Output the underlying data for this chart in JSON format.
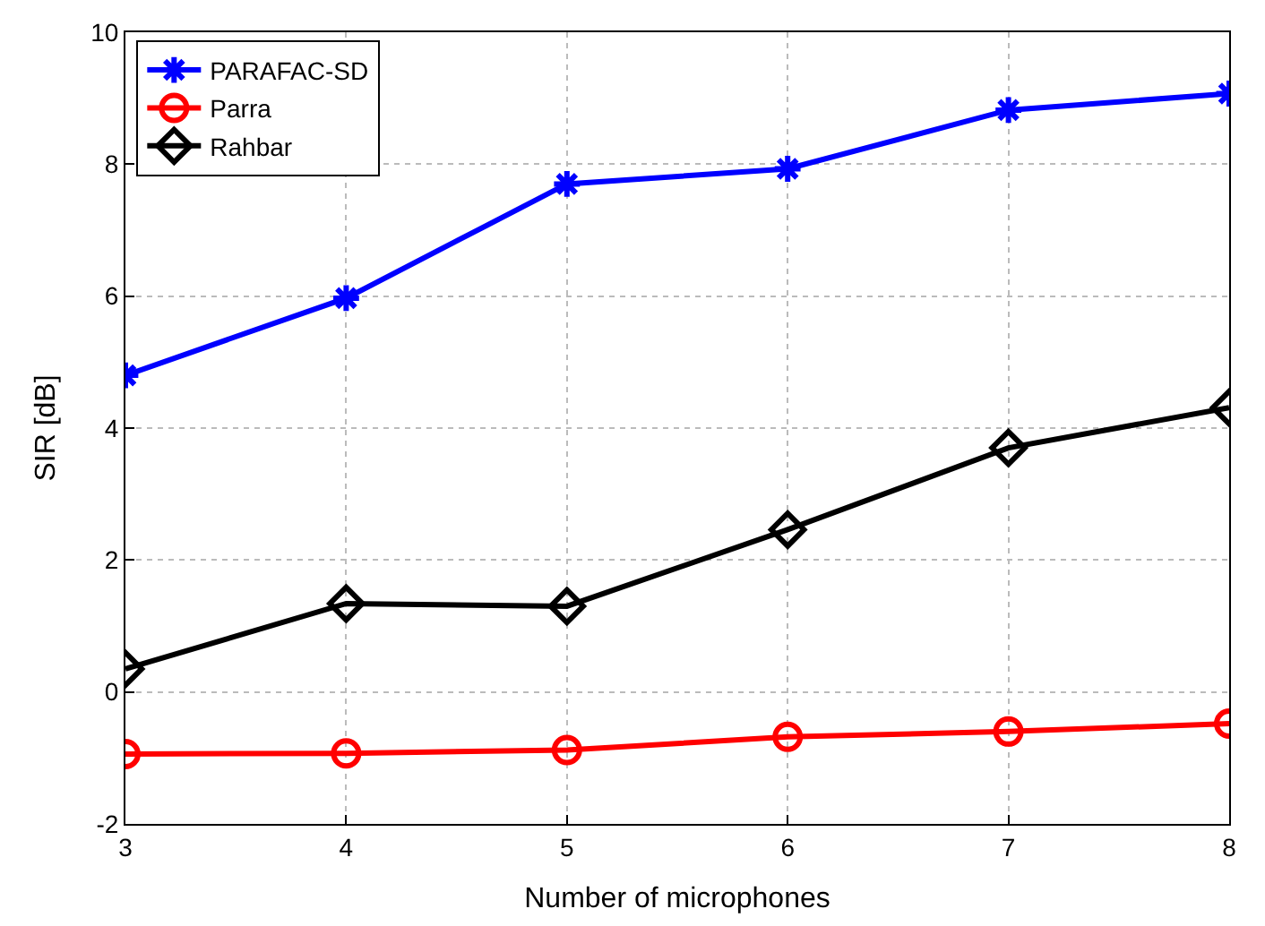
{
  "chart_data": {
    "type": "line",
    "xlabel": "Number of microphones",
    "ylabel": "SIR [dB]",
    "x": [
      3,
      4,
      5,
      6,
      7,
      8
    ],
    "xlim": [
      3,
      8
    ],
    "xticks": [
      3,
      4,
      5,
      6,
      7,
      8
    ],
    "ylim": [
      -2,
      10
    ],
    "yticks": [
      -2,
      0,
      2,
      4,
      6,
      8,
      10
    ],
    "grid": true,
    "legend": "top left",
    "line_style": "solid",
    "series": [
      {
        "name": "PARAFAC-SD",
        "color": "#0000ff",
        "marker": "cross",
        "values": [
          4.8,
          5.97,
          7.7,
          7.93,
          8.82,
          9.07
        ]
      },
      {
        "name": "Parra",
        "color": "#ff0000",
        "marker": "circle",
        "values": [
          -0.94,
          -0.93,
          -0.88,
          -0.68,
          -0.6,
          -0.48
        ]
      },
      {
        "name": "Rahbar",
        "color": "#000000",
        "marker": "diamond",
        "values": [
          0.35,
          1.34,
          1.3,
          2.46,
          3.7,
          4.31
        ]
      }
    ]
  }
}
